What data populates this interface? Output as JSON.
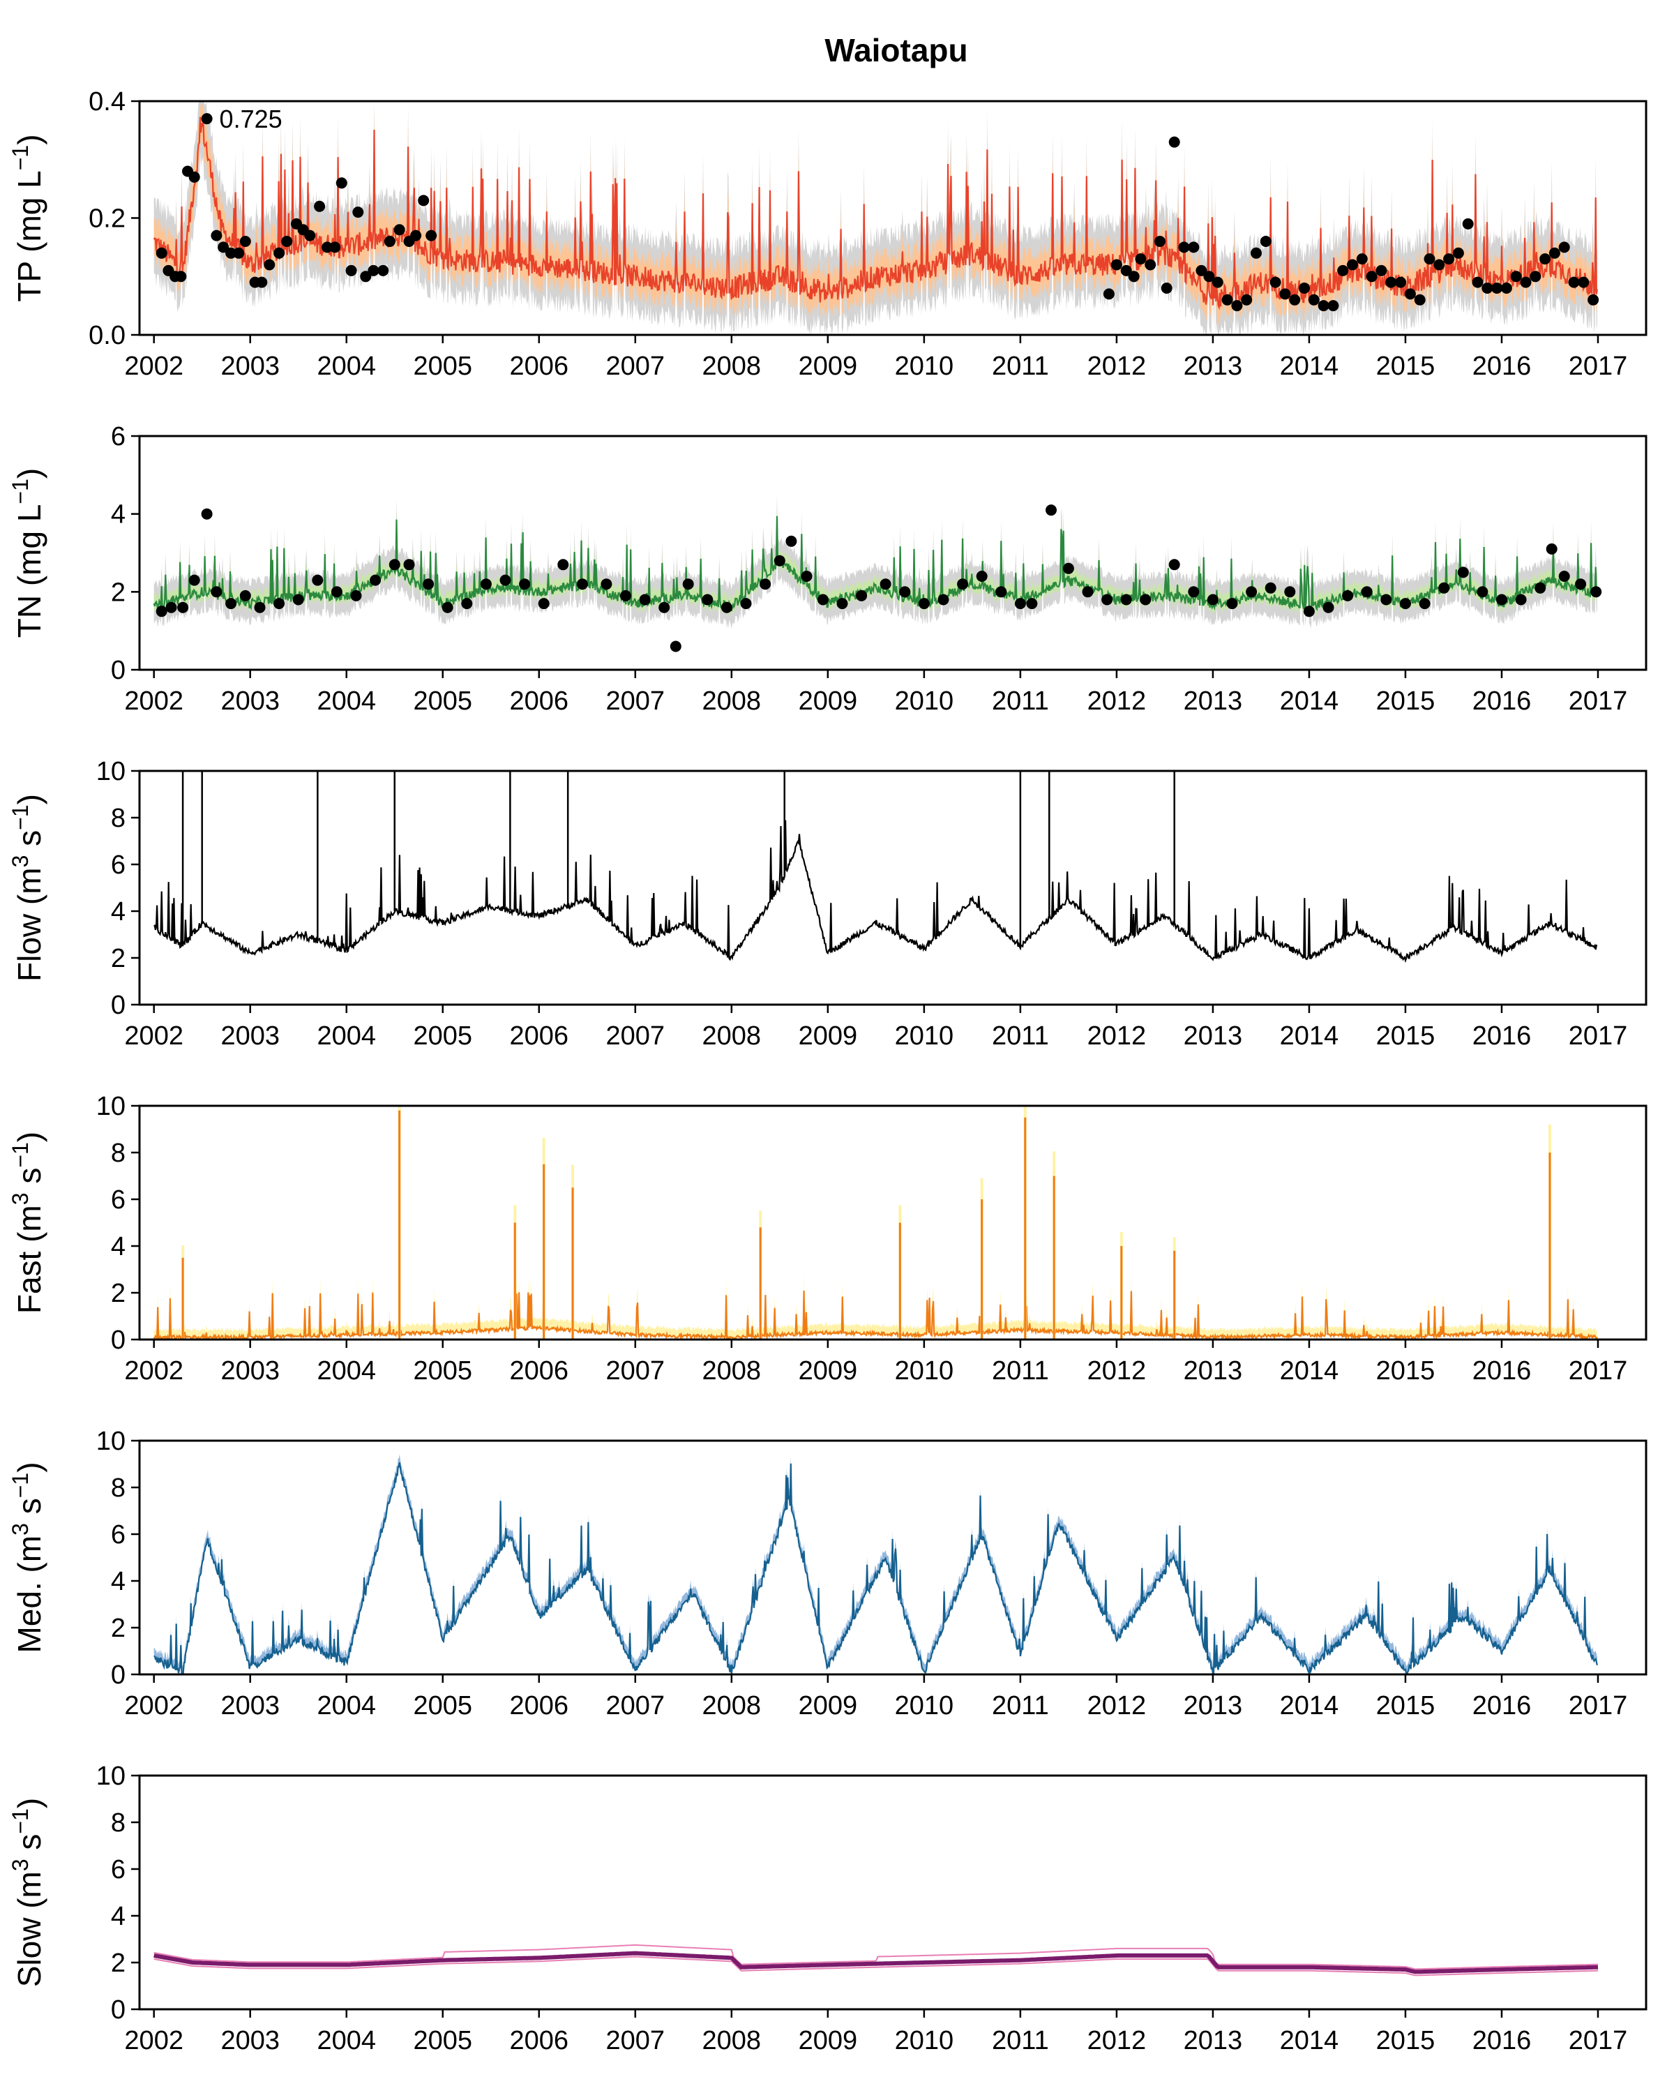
{
  "figure": {
    "title": "Waiotapu"
  },
  "x_axis": {
    "ticks": [
      2002,
      2003,
      2004,
      2005,
      2006,
      2007,
      2008,
      2009,
      2010,
      2011,
      2012,
      2013,
      2014,
      2015,
      2016,
      2017
    ],
    "range": [
      2001.85,
      2017.5
    ]
  },
  "colors": {
    "tp_line": "#e8432a",
    "tp_band": "#fdc494",
    "unc_band": "#d4d4d4",
    "tn_line": "#2b8a3e",
    "tn_band": "#c8e6a8",
    "flow_line": "#000000",
    "fast_line": "#f07d14",
    "fast_band": "#fff2a8",
    "med_line": "#15608f",
    "med_band": "#94b8dd",
    "slow_line": "#7a1b6b",
    "slow_band": "#e87fb4",
    "obs_points": "#000000"
  },
  "annotation": {
    "text": "0.725"
  },
  "panels": [
    {
      "key": "tp",
      "ylabel_main": "TP",
      "ylabel_unit": "(mg L",
      "ylabel_sup": "−1",
      "ylabel_close": ")",
      "ylim": [
        0,
        0.4
      ],
      "yticks": [
        "0.0",
        "0.2",
        "0.4"
      ]
    },
    {
      "key": "tn",
      "ylabel_main": "TN",
      "ylabel_unit": "(mg L",
      "ylabel_sup": "−1",
      "ylabel_close": ")",
      "ylim": [
        0,
        6
      ],
      "yticks": [
        "0",
        "2",
        "4",
        "6"
      ]
    },
    {
      "key": "flow",
      "ylabel_main": "Flow",
      "ylabel_unit": "(m",
      "ylabel_sup": "3",
      "ylabel_unit2": " s",
      "ylabel_sup2": "−1",
      "ylabel_close": ")",
      "ylim": [
        0,
        10
      ],
      "yticks": [
        "0",
        "2",
        "4",
        "6",
        "8",
        "10"
      ]
    },
    {
      "key": "fast",
      "ylabel_main": "Fast",
      "ylabel_unit": "(m",
      "ylabel_sup": "3",
      "ylabel_unit2": " s",
      "ylabel_sup2": "−1",
      "ylabel_close": ")",
      "ylim": [
        0,
        10
      ],
      "yticks": [
        "0",
        "2",
        "4",
        "6",
        "8",
        "10"
      ]
    },
    {
      "key": "med",
      "ylabel_main": "Med.",
      "ylabel_unit": "(m",
      "ylabel_sup": "3",
      "ylabel_unit2": " s",
      "ylabel_sup2": "−1",
      "ylabel_close": ")",
      "ylim": [
        0,
        10
      ],
      "yticks": [
        "0",
        "2",
        "4",
        "6",
        "8",
        "10"
      ]
    },
    {
      "key": "slow",
      "ylabel_main": "Slow",
      "ylabel_unit": "(m",
      "ylabel_sup": "3",
      "ylabel_unit2": " s",
      "ylabel_sup2": "−1",
      "ylabel_close": ")",
      "ylim": [
        0,
        10
      ],
      "yticks": [
        "0",
        "2",
        "4",
        "6",
        "8",
        "10"
      ]
    }
  ],
  "chart_data": [
    {
      "type": "line",
      "name": "TP",
      "ylabel": "TP (mg L−1)",
      "ylim": [
        0,
        0.4
      ],
      "series_x": [
        2002.0,
        2002.3,
        2002.5,
        2002.7,
        2003.0,
        2003.5,
        2004.0,
        2004.5,
        2005.0,
        2006.0,
        2007.0,
        2008.0,
        2008.5,
        2009.0,
        2009.5,
        2010.0,
        2010.5,
        2011.0,
        2011.5,
        2012.0,
        2012.5,
        2013.0,
        2013.5,
        2014.0,
        2014.5,
        2015.0,
        2015.5,
        2016.0,
        2016.5,
        2017.0
      ],
      "series_y": [
        0.16,
        0.11,
        0.36,
        0.18,
        0.12,
        0.16,
        0.15,
        0.17,
        0.13,
        0.12,
        0.1,
        0.08,
        0.1,
        0.07,
        0.1,
        0.11,
        0.14,
        0.1,
        0.12,
        0.12,
        0.14,
        0.06,
        0.09,
        0.07,
        0.11,
        0.08,
        0.12,
        0.09,
        0.12,
        0.08
      ],
      "observations": [
        [
          2002.08,
          0.14
        ],
        [
          2002.15,
          0.11
        ],
        [
          2002.22,
          0.1
        ],
        [
          2002.28,
          0.1
        ],
        [
          2002.35,
          0.28
        ],
        [
          2002.42,
          0.27
        ],
        [
          2002.55,
          0.37
        ],
        [
          2002.65,
          0.17
        ],
        [
          2002.72,
          0.15
        ],
        [
          2002.8,
          0.14
        ],
        [
          2002.88,
          0.14
        ],
        [
          2002.95,
          0.16
        ],
        [
          2003.05,
          0.09
        ],
        [
          2003.12,
          0.09
        ],
        [
          2003.2,
          0.12
        ],
        [
          2003.3,
          0.14
        ],
        [
          2003.38,
          0.16
        ],
        [
          2003.48,
          0.19
        ],
        [
          2003.55,
          0.18
        ],
        [
          2003.62,
          0.17
        ],
        [
          2003.72,
          0.22
        ],
        [
          2003.8,
          0.15
        ],
        [
          2003.88,
          0.15
        ],
        [
          2003.95,
          0.26
        ],
        [
          2004.05,
          0.11
        ],
        [
          2004.12,
          0.21
        ],
        [
          2004.2,
          0.1
        ],
        [
          2004.28,
          0.11
        ],
        [
          2004.38,
          0.11
        ],
        [
          2004.45,
          0.16
        ],
        [
          2004.55,
          0.18
        ],
        [
          2004.65,
          0.16
        ],
        [
          2004.72,
          0.17
        ],
        [
          2004.8,
          0.23
        ],
        [
          2004.88,
          0.17
        ],
        [
          2011.92,
          0.07
        ],
        [
          2012.0,
          0.12
        ],
        [
          2012.1,
          0.11
        ],
        [
          2012.18,
          0.1
        ],
        [
          2012.25,
          0.13
        ],
        [
          2012.35,
          0.12
        ],
        [
          2012.45,
          0.16
        ],
        [
          2012.52,
          0.08
        ],
        [
          2012.6,
          0.33
        ],
        [
          2012.7,
          0.15
        ],
        [
          2012.8,
          0.15
        ],
        [
          2012.88,
          0.11
        ],
        [
          2012.96,
          0.1
        ],
        [
          2013.05,
          0.09
        ],
        [
          2013.15,
          0.06
        ],
        [
          2013.25,
          0.05
        ],
        [
          2013.35,
          0.06
        ],
        [
          2013.45,
          0.14
        ],
        [
          2013.55,
          0.16
        ],
        [
          2013.65,
          0.09
        ],
        [
          2013.75,
          0.07
        ],
        [
          2013.85,
          0.06
        ],
        [
          2013.95,
          0.08
        ],
        [
          2014.05,
          0.06
        ],
        [
          2014.15,
          0.05
        ],
        [
          2014.25,
          0.05
        ],
        [
          2014.35,
          0.11
        ],
        [
          2014.45,
          0.12
        ],
        [
          2014.55,
          0.13
        ],
        [
          2014.65,
          0.1
        ],
        [
          2014.75,
          0.11
        ],
        [
          2014.85,
          0.09
        ],
        [
          2014.95,
          0.09
        ],
        [
          2015.05,
          0.07
        ],
        [
          2015.15,
          0.06
        ],
        [
          2015.25,
          0.13
        ],
        [
          2015.35,
          0.12
        ],
        [
          2015.45,
          0.13
        ],
        [
          2015.55,
          0.14
        ],
        [
          2015.65,
          0.19
        ],
        [
          2015.75,
          0.09
        ],
        [
          2015.85,
          0.08
        ],
        [
          2015.95,
          0.08
        ],
        [
          2016.05,
          0.08
        ],
        [
          2016.15,
          0.1
        ],
        [
          2016.25,
          0.09
        ],
        [
          2016.35,
          0.1
        ],
        [
          2016.45,
          0.13
        ],
        [
          2016.55,
          0.14
        ],
        [
          2016.65,
          0.15
        ],
        [
          2016.75,
          0.09
        ],
        [
          2016.85,
          0.09
        ],
        [
          2016.95,
          0.06
        ]
      ]
    },
    {
      "type": "line",
      "name": "TN",
      "ylabel": "TN (mg L−1)",
      "ylim": [
        0,
        6
      ],
      "series_x": [
        2002.0,
        2002.5,
        2003.0,
        2003.5,
        2004.0,
        2004.5,
        2005.0,
        2005.5,
        2006.0,
        2006.5,
        2007.0,
        2007.5,
        2008.0,
        2008.5,
        2009.0,
        2009.5,
        2010.0,
        2010.5,
        2011.0,
        2011.5,
        2012.0,
        2012.5,
        2013.0,
        2013.5,
        2014.0,
        2014.5,
        2015.0,
        2015.5,
        2016.0,
        2016.5,
        2017.0
      ],
      "series_y": [
        1.6,
        2.0,
        1.7,
        1.9,
        1.9,
        2.6,
        1.7,
        2.1,
        2.0,
        2.2,
        1.7,
        1.9,
        1.6,
        2.8,
        1.7,
        2.1,
        1.7,
        2.2,
        1.8,
        2.3,
        1.8,
        1.9,
        1.7,
        1.9,
        1.6,
        2.0,
        1.7,
        2.2,
        1.7,
        2.3,
        1.9
      ],
      "observations": [
        [
          2002.08,
          1.5
        ],
        [
          2002.18,
          1.6
        ],
        [
          2002.3,
          1.6
        ],
        [
          2002.42,
          2.3
        ],
        [
          2002.55,
          4.0
        ],
        [
          2002.65,
          2.0
        ],
        [
          2002.8,
          1.7
        ],
        [
          2002.95,
          1.9
        ],
        [
          2003.1,
          1.6
        ],
        [
          2003.3,
          1.7
        ],
        [
          2003.5,
          1.8
        ],
        [
          2003.7,
          2.3
        ],
        [
          2003.9,
          2.0
        ],
        [
          2004.1,
          1.9
        ],
        [
          2004.3,
          2.3
        ],
        [
          2004.5,
          2.7
        ],
        [
          2004.65,
          2.7
        ],
        [
          2004.85,
          2.2
        ],
        [
          2005.05,
          1.6
        ],
        [
          2005.25,
          1.7
        ],
        [
          2005.45,
          2.2
        ],
        [
          2005.65,
          2.3
        ],
        [
          2005.85,
          2.2
        ],
        [
          2006.05,
          1.7
        ],
        [
          2006.25,
          2.7
        ],
        [
          2006.45,
          2.2
        ],
        [
          2006.7,
          2.2
        ],
        [
          2006.9,
          1.9
        ],
        [
          2007.1,
          1.8
        ],
        [
          2007.3,
          1.6
        ],
        [
          2007.42,
          0.6
        ],
        [
          2007.55,
          2.2
        ],
        [
          2007.75,
          1.8
        ],
        [
          2007.95,
          1.6
        ],
        [
          2008.15,
          1.7
        ],
        [
          2008.35,
          2.2
        ],
        [
          2008.5,
          2.8
        ],
        [
          2008.62,
          3.3
        ],
        [
          2008.78,
          2.4
        ],
        [
          2008.95,
          1.8
        ],
        [
          2009.15,
          1.7
        ],
        [
          2009.35,
          1.9
        ],
        [
          2009.6,
          2.2
        ],
        [
          2009.8,
          2.0
        ],
        [
          2010.0,
          1.7
        ],
        [
          2010.2,
          1.8
        ],
        [
          2010.4,
          2.2
        ],
        [
          2010.6,
          2.4
        ],
        [
          2010.8,
          2.0
        ],
        [
          2011.0,
          1.7
        ],
        [
          2011.12,
          1.7
        ],
        [
          2011.32,
          4.1
        ],
        [
          2011.5,
          2.6
        ],
        [
          2011.7,
          2.0
        ],
        [
          2011.9,
          1.8
        ],
        [
          2012.1,
          1.8
        ],
        [
          2012.3,
          1.8
        ],
        [
          2012.6,
          2.7
        ],
        [
          2012.8,
          2.0
        ],
        [
          2013.0,
          1.8
        ],
        [
          2013.2,
          1.7
        ],
        [
          2013.4,
          2.0
        ],
        [
          2013.6,
          2.1
        ],
        [
          2013.8,
          2.0
        ],
        [
          2014.0,
          1.5
        ],
        [
          2014.2,
          1.6
        ],
        [
          2014.4,
          1.9
        ],
        [
          2014.6,
          2.0
        ],
        [
          2014.8,
          1.8
        ],
        [
          2015.0,
          1.7
        ],
        [
          2015.2,
          1.7
        ],
        [
          2015.4,
          2.1
        ],
        [
          2015.6,
          2.5
        ],
        [
          2015.8,
          2.0
        ],
        [
          2016.0,
          1.8
        ],
        [
          2016.2,
          1.8
        ],
        [
          2016.4,
          2.1
        ],
        [
          2016.52,
          3.1
        ],
        [
          2016.65,
          2.4
        ],
        [
          2016.82,
          2.2
        ],
        [
          2016.98,
          2.0
        ]
      ]
    },
    {
      "type": "line",
      "name": "Flow",
      "ylabel": "Flow (m3 s−1)",
      "ylim": [
        0,
        10
      ],
      "series_x": [
        2002.0,
        2002.3,
        2002.5,
        2003.0,
        2003.5,
        2004.0,
        2004.5,
        2005.0,
        2005.5,
        2006.0,
        2006.5,
        2007.0,
        2007.5,
        2008.0,
        2008.5,
        2008.7,
        2009.0,
        2009.5,
        2010.0,
        2010.5,
        2011.0,
        2011.5,
        2012.0,
        2012.5,
        2013.0,
        2013.5,
        2014.0,
        2014.5,
        2015.0,
        2015.5,
        2016.0,
        2016.5,
        2017.0
      ],
      "series_y": [
        3.3,
        2.5,
        3.5,
        2.2,
        3.0,
        2.3,
        4.0,
        3.5,
        4.2,
        3.8,
        4.5,
        2.5,
        3.5,
        2.0,
        5.0,
        7.0,
        2.2,
        3.5,
        2.4,
        4.5,
        2.5,
        4.5,
        2.6,
        3.8,
        2.0,
        3.0,
        2.0,
        3.2,
        2.0,
        3.3,
        2.2,
        3.5,
        2.4
      ],
      "peaks": [
        [
          2002.3,
          10
        ],
        [
          2002.5,
          10
        ],
        [
          2003.7,
          10
        ],
        [
          2004.5,
          10
        ],
        [
          2005.7,
          10
        ],
        [
          2006.3,
          10
        ],
        [
          2008.55,
          10
        ],
        [
          2011.0,
          10
        ],
        [
          2011.3,
          10
        ],
        [
          2012.6,
          10
        ]
      ]
    },
    {
      "type": "line",
      "name": "Fast",
      "ylabel": "Fast (m3 s−1)",
      "ylim": [
        0,
        10
      ],
      "series_x": [
        2002.0,
        2003.0,
        2004.0,
        2005.0,
        2006.0,
        2007.0,
        2008.0,
        2009.0,
        2010.0,
        2011.0,
        2012.0,
        2013.0,
        2014.0,
        2015.0,
        2016.0,
        2017.0
      ],
      "series_y": [
        0.1,
        0.1,
        0.2,
        0.3,
        0.5,
        0.2,
        0.1,
        0.3,
        0.2,
        0.4,
        0.3,
        0.1,
        0.2,
        0.1,
        0.3,
        0.1
      ],
      "peaks": [
        [
          2002.3,
          3.5
        ],
        [
          2004.55,
          9.8
        ],
        [
          2005.75,
          5.0
        ],
        [
          2006.05,
          7.5
        ],
        [
          2006.35,
          6.5
        ],
        [
          2008.3,
          4.8
        ],
        [
          2009.75,
          5.0
        ],
        [
          2010.6,
          6.0
        ],
        [
          2011.05,
          9.5
        ],
        [
          2011.35,
          7.0
        ],
        [
          2012.05,
          4.0
        ],
        [
          2012.6,
          3.8
        ],
        [
          2016.5,
          8.0
        ]
      ]
    },
    {
      "type": "line",
      "name": "Med.",
      "ylabel": "Med. (m3 s−1)",
      "ylim": [
        0,
        10
      ],
      "series_x": [
        2002.0,
        2002.3,
        2002.55,
        2003.0,
        2003.5,
        2004.0,
        2004.55,
        2005.0,
        2005.7,
        2006.0,
        2006.5,
        2007.0,
        2007.6,
        2008.0,
        2008.6,
        2009.0,
        2009.6,
        2010.0,
        2010.6,
        2011.0,
        2011.4,
        2012.0,
        2012.6,
        2013.0,
        2013.5,
        2014.0,
        2014.6,
        2015.0,
        2015.6,
        2016.0,
        2016.5,
        2017.0
      ],
      "series_y": [
        0.7,
        0.1,
        5.8,
        0.3,
        1.5,
        0.5,
        9.0,
        1.5,
        6.0,
        2.5,
        4.5,
        0.2,
        3.5,
        0.1,
        7.5,
        0.3,
        5.0,
        0.1,
        6.0,
        0.8,
        6.5,
        1.5,
        5.0,
        0.1,
        2.5,
        0.2,
        2.5,
        0.1,
        2.5,
        1.0,
        4.5,
        0.3
      ]
    },
    {
      "type": "line",
      "name": "Slow",
      "ylabel": "Slow (m3 s−1)",
      "ylim": [
        0,
        10
      ],
      "series_x": [
        2002.0,
        2002.4,
        2003.0,
        2004.0,
        2005.0,
        2006.0,
        2007.0,
        2008.0,
        2008.1,
        2009.0,
        2010.0,
        2011.0,
        2012.0,
        2012.95,
        2013.05,
        2014.0,
        2015.0,
        2015.1,
        2016.0,
        2017.0
      ],
      "series_y": [
        2.3,
        2.0,
        1.9,
        1.9,
        2.1,
        2.2,
        2.4,
        2.2,
        1.8,
        1.9,
        2.0,
        2.1,
        2.3,
        2.3,
        1.8,
        1.8,
        1.7,
        1.6,
        1.7,
        1.8
      ]
    }
  ]
}
